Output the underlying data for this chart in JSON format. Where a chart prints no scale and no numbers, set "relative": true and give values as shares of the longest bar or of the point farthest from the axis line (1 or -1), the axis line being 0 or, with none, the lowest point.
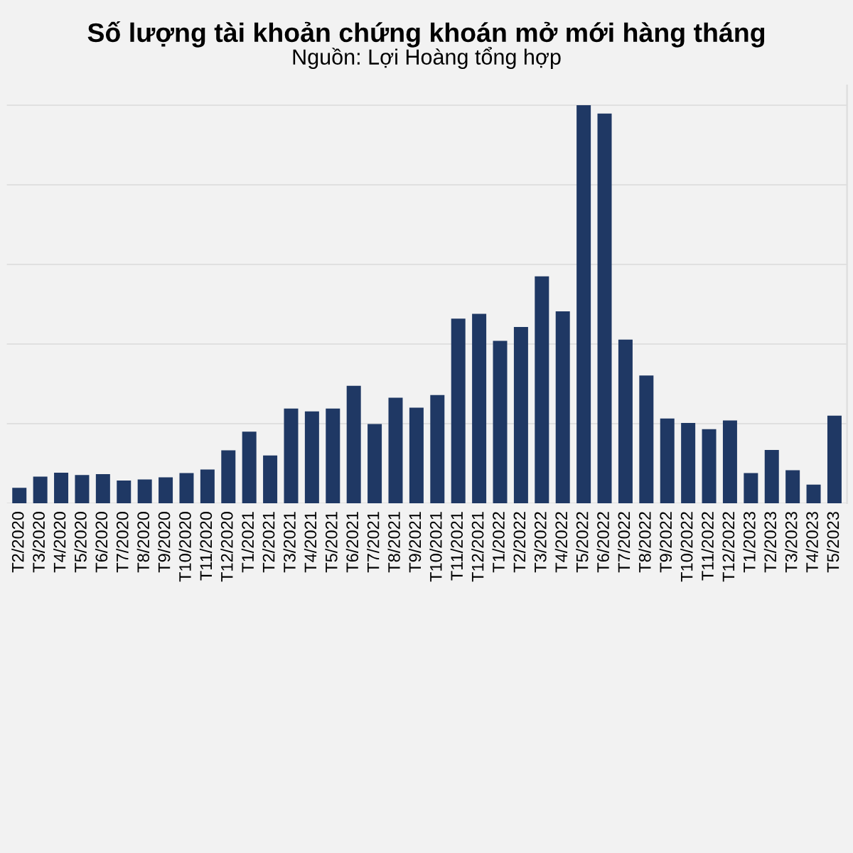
{
  "chart_data": {
    "type": "bar",
    "title": "Số lượng tài khoản chứng khoán mở mới hàng tháng",
    "subtitle": "Nguồn: Lợi Hoàng tổng hợp",
    "relative": true,
    "grid": "y",
    "legend": false,
    "categories": [
      "T2/2020",
      "T3/2020",
      "T4/2020",
      "T5/2020",
      "T6/2020",
      "T7/2020",
      "T8/2020",
      "T9/2020",
      "T10/2020",
      "T11/2020",
      "T12/2020",
      "T1/2021",
      "T2/2021",
      "T3/2021",
      "T4/2021",
      "T5/2021",
      "T6/2021",
      "T7/2021",
      "T8/2021",
      "T9/2021",
      "T10/2021",
      "T11/2021",
      "T12/2021",
      "T1/2022",
      "T2/2022",
      "T3/2022",
      "T4/2022",
      "T5/2022",
      "T6/2022",
      "T7/2022",
      "T8/2022",
      "T9/2022",
      "T10/2022",
      "T11/2022",
      "T12/2022",
      "T1/2023",
      "T2/2023",
      "T3/2023",
      "T4/2023",
      "T5/2023"
    ],
    "series": [
      {
        "color": "#1f3864",
        "values": [
          0.039,
          0.067,
          0.077,
          0.071,
          0.073,
          0.057,
          0.06,
          0.065,
          0.076,
          0.085,
          0.133,
          0.18,
          0.12,
          0.238,
          0.231,
          0.238,
          0.295,
          0.199,
          0.265,
          0.24,
          0.272,
          0.464,
          0.476,
          0.408,
          0.443,
          0.57,
          0.482,
          1,
          0.979,
          0.411,
          0.321,
          0.213,
          0.202,
          0.186,
          0.208,
          0.076,
          0.134,
          0.083,
          0.047,
          0.22
        ]
      }
    ]
  }
}
